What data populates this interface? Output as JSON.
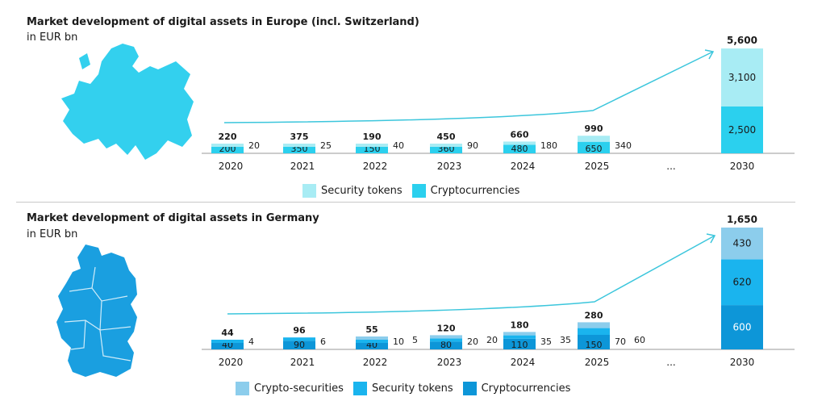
{
  "colors": {
    "crypto_securities": "#8ccdec",
    "security_tokens_top": "#a8ecf4",
    "cryptocurrencies_top": "#2bd0ee",
    "security_tokens_bottom": "#1ab4ee",
    "cryptocurrencies_bottom": "#0d96d8",
    "trend_line": "#3cc6dc",
    "map_top": "#33d0ee",
    "map_bottom": "#1a9fe0"
  },
  "chart_data": [
    {
      "type": "bar",
      "title": "Market development of digital assets in Europe (incl. Switzerland)",
      "subtitle": "in EUR bn",
      "categories": [
        "2020",
        "2021",
        "2022",
        "2023",
        "2024",
        "2025",
        "...",
        "2030"
      ],
      "totals": [
        "220",
        "375",
        "190",
        "450",
        "660",
        "990",
        "",
        "5,600"
      ],
      "series": [
        {
          "name": "Cryptocurrencies",
          "values": [
            200,
            350,
            150,
            360,
            480,
            650,
            null,
            2500
          ],
          "labels": [
            "200",
            "350",
            "150",
            "360",
            "480",
            "650",
            "",
            "2,500"
          ]
        },
        {
          "name": "Security tokens",
          "values": [
            20,
            25,
            40,
            90,
            180,
            340,
            null,
            3100
          ],
          "labels": [
            "20",
            "25",
            "40",
            "90",
            "180",
            "340",
            "",
            "3,100"
          ]
        }
      ],
      "legend": [
        "Security tokens",
        "Cryptocurrencies"
      ]
    },
    {
      "type": "bar",
      "title": "Market development of digital assets in Germany",
      "subtitle": "in EUR bn",
      "categories": [
        "2020",
        "2021",
        "2022",
        "2023",
        "2024",
        "2025",
        "...",
        "2030"
      ],
      "totals": [
        "44",
        "96",
        "55",
        "120",
        "180",
        "280",
        "",
        "1,650"
      ],
      "series": [
        {
          "name": "Cryptocurrencies",
          "values": [
            40,
            90,
            40,
            80,
            110,
            150,
            null,
            600
          ],
          "labels": [
            "40",
            "90",
            "40",
            "80",
            "110",
            "150",
            "",
            "600"
          ]
        },
        {
          "name": "Security tokens",
          "values": [
            4,
            6,
            10,
            20,
            35,
            70,
            null,
            620
          ],
          "labels": [
            "4",
            "6",
            "10",
            "20",
            "35",
            "70",
            "",
            "620"
          ]
        },
        {
          "name": "Crypto-securities",
          "values": [
            0,
            0,
            5,
            20,
            35,
            60,
            null,
            430
          ],
          "labels": [
            "",
            "",
            "5",
            "20",
            "35",
            "60",
            "",
            "430"
          ]
        }
      ],
      "legend": [
        "Crypto-securities",
        "Security tokens",
        "Cryptocurrencies"
      ]
    }
  ]
}
